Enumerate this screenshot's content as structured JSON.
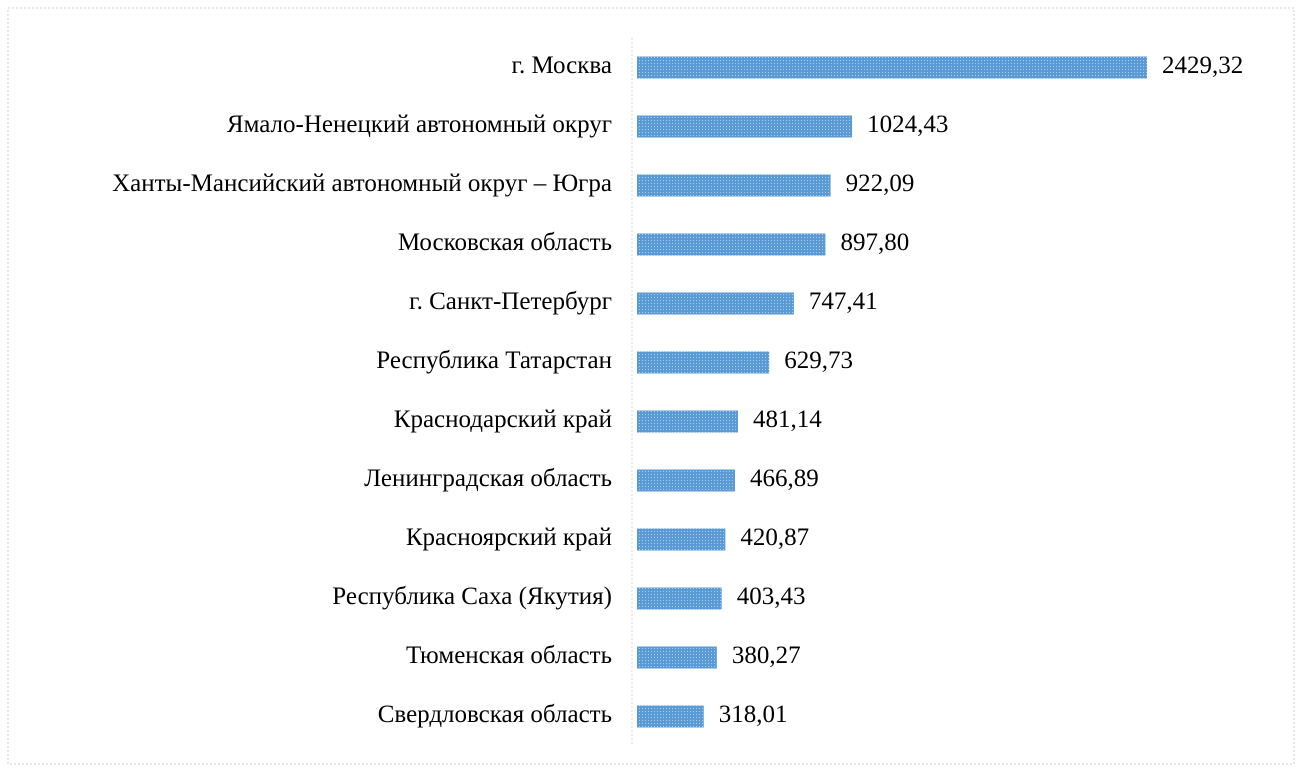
{
  "chart_data": {
    "type": "hbar",
    "categories": [
      "г. Москва",
      "Ямало-Ненецкий автономный округ",
      "Ханты-Мансийский автономный округ – Югра",
      "Московская область",
      "г. Санкт-Петербург",
      "Республика Татарстан",
      "Краснодарский край",
      "Ленинградская область",
      "Красноярский край",
      "Республика Саха (Якутия)",
      "Тюменская область",
      "Свердловская область"
    ],
    "values": [
      2429.32,
      1024.43,
      922.09,
      897.8,
      747.41,
      629.73,
      481.14,
      466.89,
      420.87,
      403.43,
      380.27,
      318.01
    ],
    "value_labels": [
      "2429,32",
      "1024,43",
      "922,09",
      "897,80",
      "747,41",
      "629,73",
      "481,14",
      "466,89",
      "420,87",
      "403,43",
      "380,27",
      "318,01"
    ],
    "color": "#5b9bd5"
  }
}
